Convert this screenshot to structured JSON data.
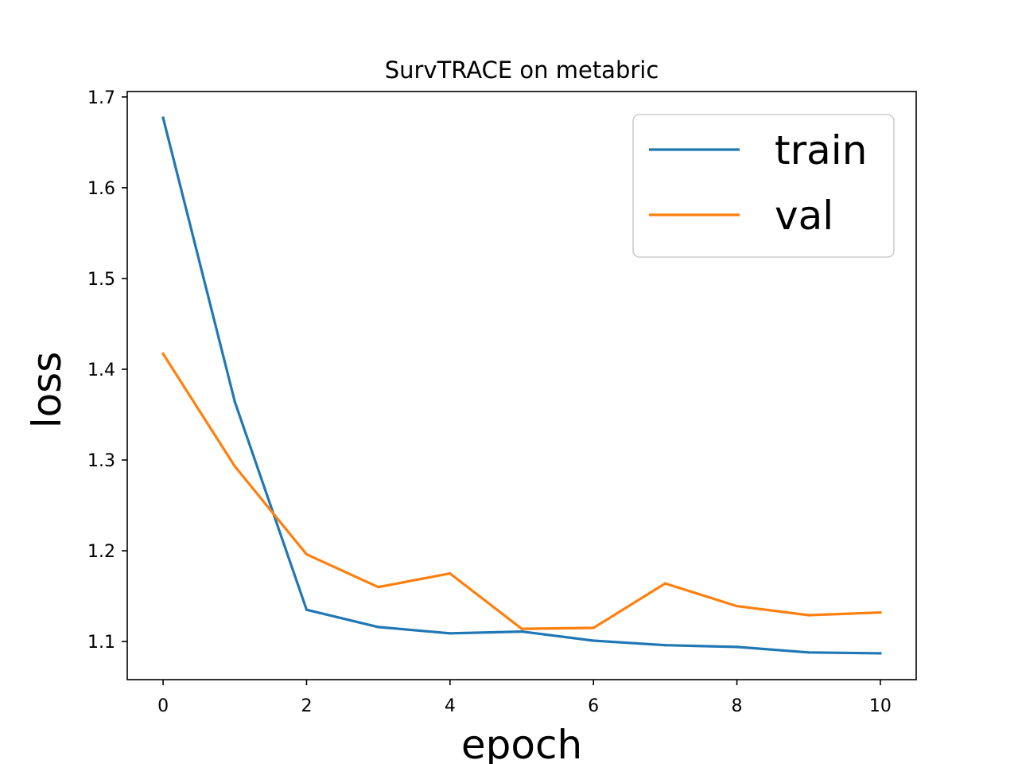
{
  "chart_data": {
    "type": "line",
    "title": "SurvTRACE on metabric",
    "xlabel": "epoch",
    "ylabel": "loss",
    "x": [
      0,
      1,
      2,
      3,
      4,
      5,
      6,
      7,
      8,
      9,
      10
    ],
    "xlim": [
      -0.5,
      10.5
    ],
    "ylim": [
      1.058,
      1.706
    ],
    "xticks": [
      0,
      2,
      4,
      6,
      8,
      10
    ],
    "yticks": [
      1.1,
      1.2,
      1.3,
      1.4,
      1.5,
      1.6,
      1.7
    ],
    "xtick_labels": [
      "0",
      "2",
      "4",
      "6",
      "8",
      "10"
    ],
    "ytick_labels": [
      "1.1",
      "1.2",
      "1.3",
      "1.4",
      "1.5",
      "1.6",
      "1.7"
    ],
    "grid": false,
    "legend_position": "top-right",
    "series": [
      {
        "name": "train",
        "color": "#1f77b4",
        "values": [
          1.677,
          1.364,
          1.135,
          1.116,
          1.109,
          1.111,
          1.101,
          1.096,
          1.094,
          1.088,
          1.087
        ]
      },
      {
        "name": "val",
        "color": "#ff7f0e",
        "values": [
          1.417,
          1.293,
          1.196,
          1.16,
          1.175,
          1.114,
          1.115,
          1.164,
          1.139,
          1.129,
          1.132
        ]
      }
    ]
  }
}
